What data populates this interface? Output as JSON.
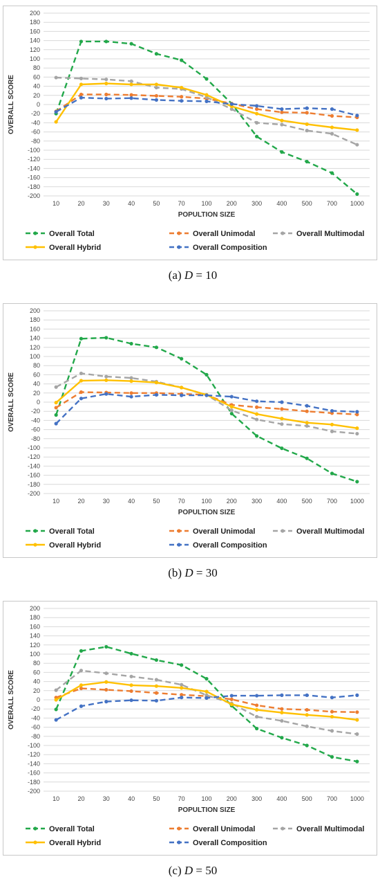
{
  "figure": {
    "captions": [
      {
        "prefix": "(a)",
        "var": "D",
        "rest": " = 10"
      },
      {
        "prefix": "(b)",
        "var": "D",
        "rest": " = 30"
      },
      {
        "prefix": "(c)",
        "var": "D",
        "rest": " = 50"
      }
    ]
  },
  "colors": {
    "total": "#22a84a",
    "unimodal": "#ed7d31",
    "multimodal": "#a5a5a5",
    "hybrid": "#ffc000",
    "composition": "#4472c4",
    "grid": "#d9d9d9"
  },
  "chart_data": [
    {
      "type": "line",
      "xlabel": "POPULTION SIZE",
      "ylabel": "OVERALL SCORE",
      "ylim": [
        -200,
        200
      ],
      "ytick_step": 20,
      "grid": "horizontal",
      "legend_position": "bottom",
      "categories": [
        "10",
        "20",
        "30",
        "40",
        "50",
        "70",
        "100",
        "200",
        "300",
        "400",
        "500",
        "700",
        "1000"
      ],
      "series": [
        {
          "name": "Overall Total",
          "style": "dashed",
          "color_key": "total",
          "values": [
            -20,
            138,
            138,
            133,
            111,
            97,
            56,
            2,
            -70,
            -104,
            -125,
            -150,
            -196
          ]
        },
        {
          "name": "Overall Unimodal",
          "style": "dashed",
          "color_key": "unimodal",
          "values": [
            -15,
            22,
            22,
            21,
            19,
            17,
            13,
            2,
            -10,
            -17,
            -18,
            -25,
            -28
          ]
        },
        {
          "name": "Overall Multimodal",
          "style": "dashed",
          "color_key": "multimodal",
          "values": [
            59,
            57,
            55,
            51,
            37,
            34,
            16,
            -10,
            -40,
            -44,
            -57,
            -64,
            -88
          ]
        },
        {
          "name": "Overall Hybrid",
          "style": "solid",
          "color_key": "hybrid",
          "values": [
            -38,
            44,
            46,
            44,
            44,
            37,
            21,
            -4,
            -20,
            -35,
            -43,
            -50,
            -56
          ]
        },
        {
          "name": "Overall Composition",
          "style": "dashed",
          "color_key": "composition",
          "values": [
            -16,
            15,
            13,
            14,
            10,
            8,
            7,
            1,
            -3,
            -10,
            -8,
            -10,
            -24
          ]
        }
      ]
    },
    {
      "type": "line",
      "xlabel": "POPULTION SIZE",
      "ylabel": "OVERALL SCORE",
      "ylim": [
        -200,
        200
      ],
      "ytick_step": 20,
      "grid": "horizontal",
      "legend_position": "bottom",
      "categories": [
        "10",
        "20",
        "30",
        "40",
        "50",
        "70",
        "100",
        "200",
        "300",
        "400",
        "500",
        "700",
        "1000"
      ],
      "series": [
        {
          "name": "Overall Total",
          "style": "dashed",
          "color_key": "total",
          "values": [
            -28,
            139,
            141,
            128,
            120,
            95,
            60,
            -25,
            -74,
            -101,
            -123,
            -156,
            -174
          ]
        },
        {
          "name": "Overall Unimodal",
          "style": "dashed",
          "color_key": "unimodal",
          "values": [
            -12,
            22,
            21,
            20,
            20,
            18,
            16,
            -6,
            -11,
            -15,
            -20,
            -24,
            -27
          ]
        },
        {
          "name": "Overall Multimodal",
          "style": "dashed",
          "color_key": "multimodal",
          "values": [
            33,
            63,
            56,
            53,
            45,
            32,
            16,
            -18,
            -38,
            -48,
            -52,
            -64,
            -69
          ]
        },
        {
          "name": "Overall Hybrid",
          "style": "solid",
          "color_key": "hybrid",
          "values": [
            -1,
            47,
            48,
            46,
            43,
            32,
            16,
            -10,
            -26,
            -36,
            -45,
            -49,
            -57
          ]
        },
        {
          "name": "Overall Composition",
          "style": "dashed",
          "color_key": "composition",
          "values": [
            -47,
            8,
            18,
            12,
            16,
            15,
            15,
            12,
            2,
            0,
            -8,
            -19,
            -21
          ]
        }
      ]
    },
    {
      "type": "line",
      "xlabel": "POPULTION SIZE",
      "ylabel": "OVERALL SCORE",
      "ylim": [
        -200,
        200
      ],
      "ytick_step": 20,
      "grid": "horizontal",
      "legend_position": "bottom",
      "categories": [
        "10",
        "20",
        "30",
        "40",
        "50",
        "70",
        "100",
        "200",
        "300",
        "400",
        "500",
        "700",
        "1000"
      ],
      "series": [
        {
          "name": "Overall Total",
          "style": "dashed",
          "color_key": "total",
          "values": [
            -21,
            107,
            116,
            101,
            87,
            76,
            46,
            -13,
            -63,
            -83,
            -100,
            -125,
            -135
          ]
        },
        {
          "name": "Overall Unimodal",
          "style": "dashed",
          "color_key": "unimodal",
          "values": [
            5,
            25,
            22,
            19,
            15,
            11,
            8,
            1,
            -12,
            -20,
            -22,
            -26,
            -27
          ]
        },
        {
          "name": "Overall Multimodal",
          "style": "dashed",
          "color_key": "multimodal",
          "values": [
            21,
            64,
            58,
            51,
            44,
            33,
            10,
            -8,
            -37,
            -46,
            -58,
            -68,
            -75
          ]
        },
        {
          "name": "Overall Hybrid",
          "style": "solid",
          "color_key": "hybrid",
          "values": [
            0,
            32,
            39,
            32,
            30,
            26,
            18,
            -10,
            -22,
            -28,
            -33,
            -37,
            -44
          ]
        },
        {
          "name": "Overall Composition",
          "style": "dashed",
          "color_key": "composition",
          "values": [
            -44,
            -14,
            -4,
            -1,
            -2,
            5,
            4,
            9,
            9,
            10,
            10,
            5,
            10
          ]
        }
      ]
    }
  ]
}
